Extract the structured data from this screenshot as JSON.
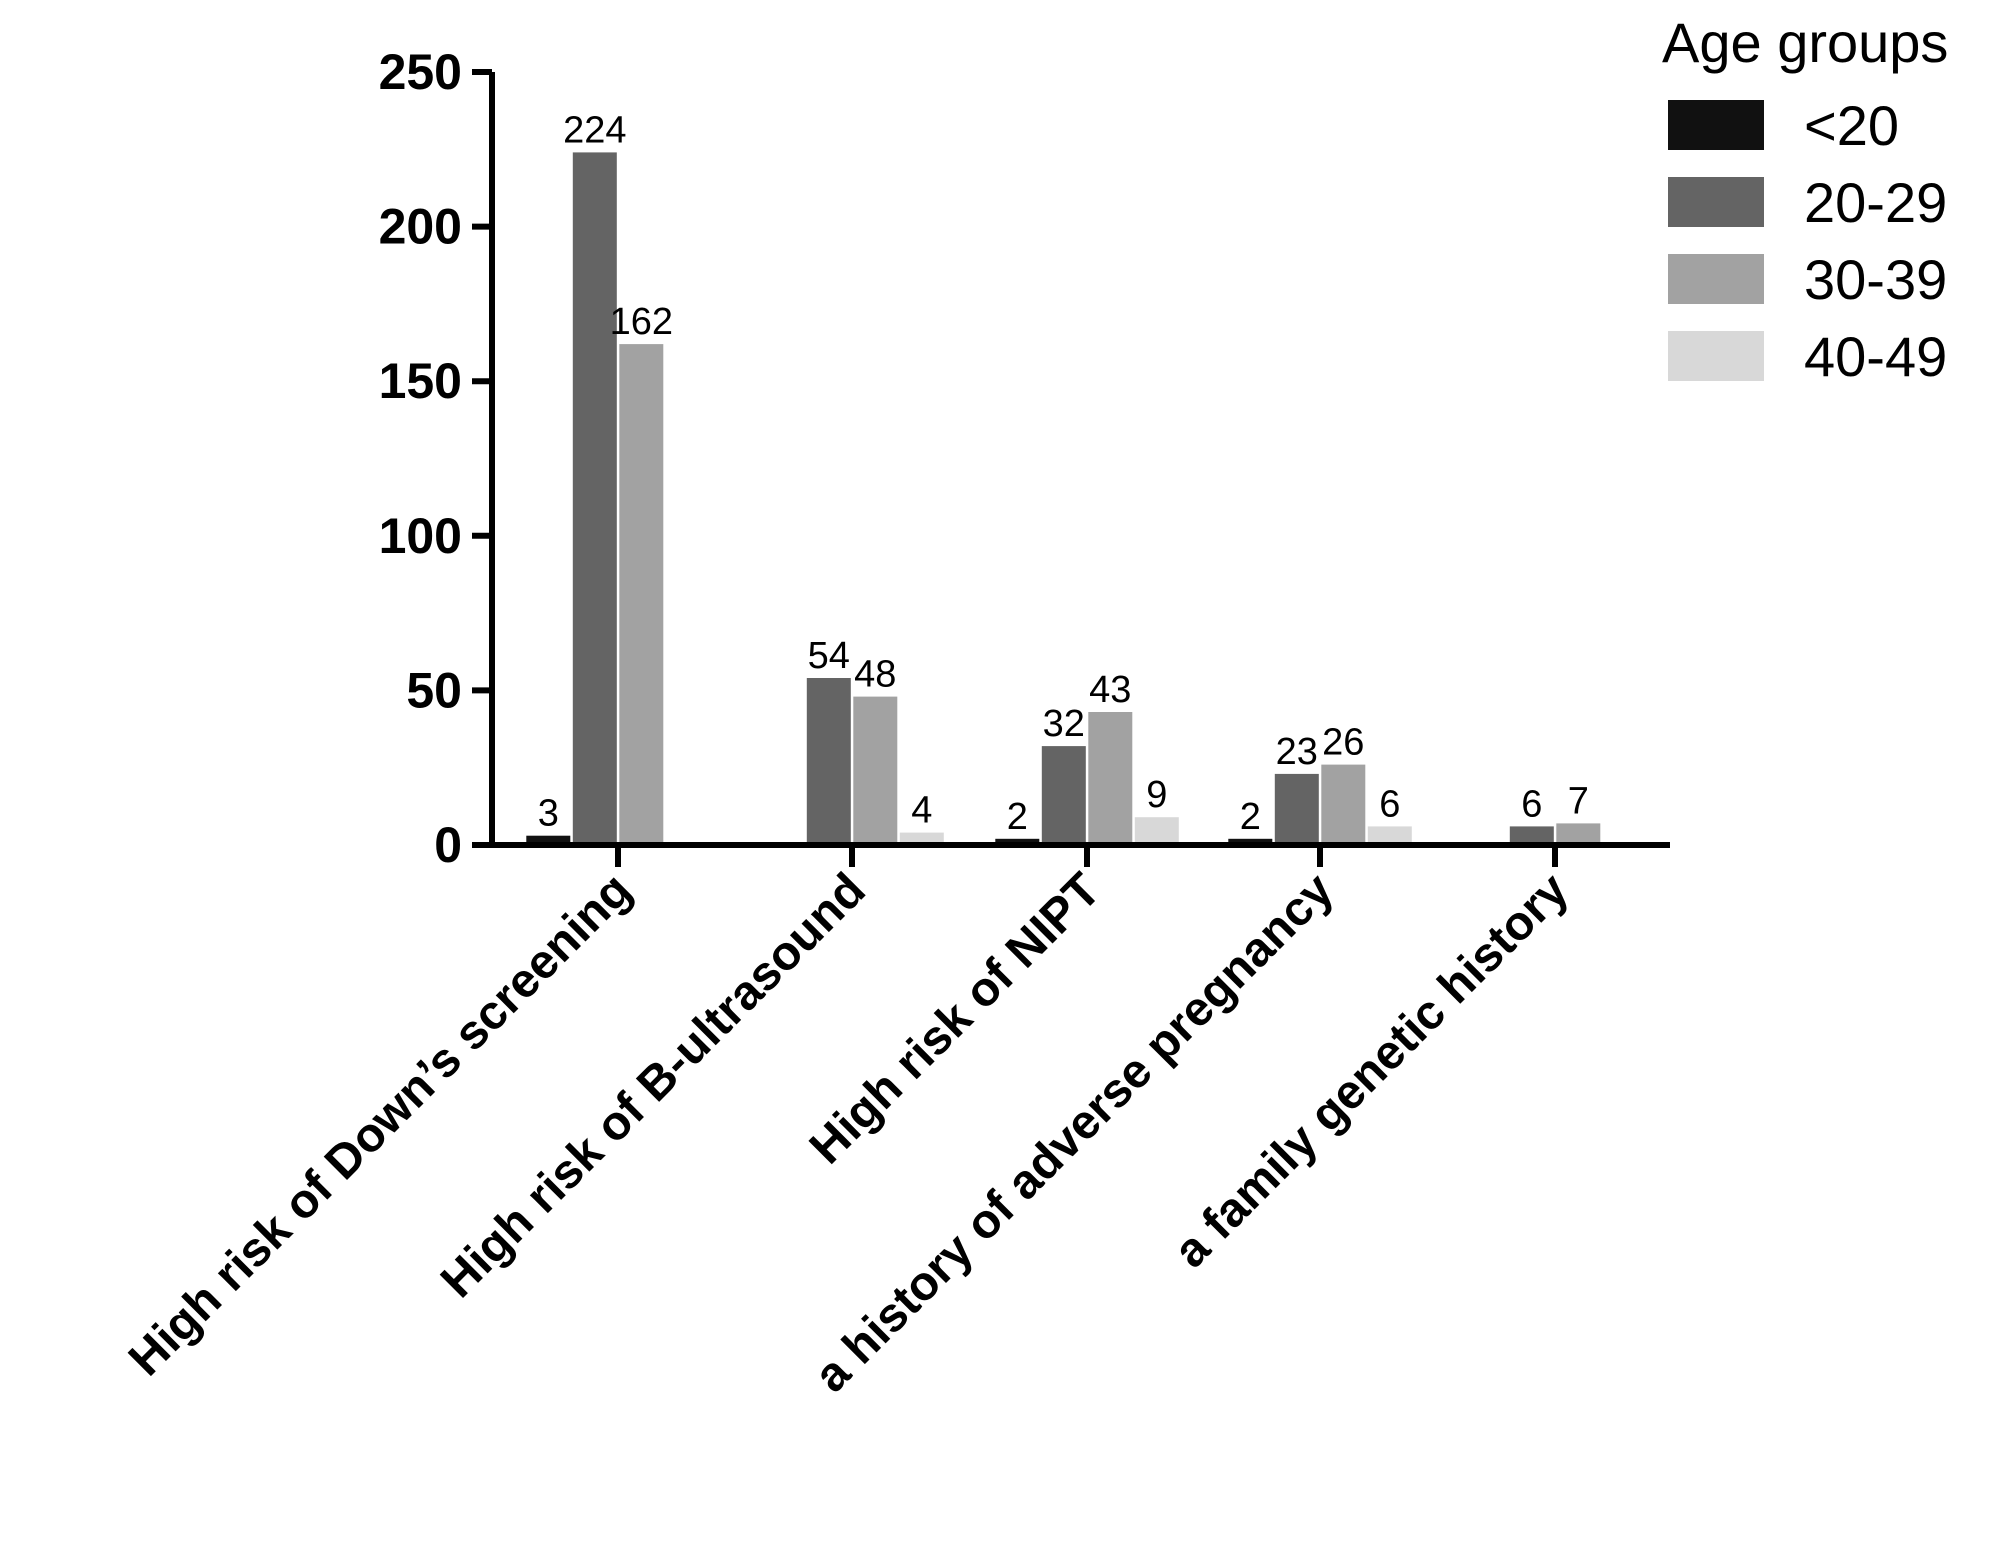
{
  "chart_data": {
    "type": "bar",
    "categories": [
      "High risk of Down’s screening",
      "High risk of B-ultrasound",
      "High risk of NIPT",
      "a history of adverse pregnancy",
      "a family genetic history"
    ],
    "series": [
      {
        "name": "<20",
        "color": "#111111",
        "values": [
          3,
          0,
          2,
          2,
          0
        ]
      },
      {
        "name": "20-29",
        "color": "#646464",
        "values": [
          224,
          54,
          32,
          23,
          6
        ]
      },
      {
        "name": "30-39",
        "color": "#a2a2a2",
        "values": [
          162,
          48,
          43,
          26,
          7
        ]
      },
      {
        "name": "40-49",
        "color": "#d8d8d8",
        "values": [
          0,
          4,
          9,
          6,
          0
        ]
      }
    ],
    "data_labels": [
      [
        "3",
        "",
        "2",
        "2",
        ""
      ],
      [
        "224",
        "54",
        "32",
        "23",
        "6"
      ],
      [
        "162",
        "48",
        "43",
        "26",
        "7"
      ],
      [
        "",
        "4",
        "9",
        "6",
        ""
      ]
    ],
    "yticks": [
      "0",
      "50",
      "100",
      "150",
      "200",
      "250"
    ],
    "ylim": [
      0,
      250
    ],
    "legend": {
      "title": "Age groups",
      "position": "top-right"
    },
    "grid": false
  }
}
